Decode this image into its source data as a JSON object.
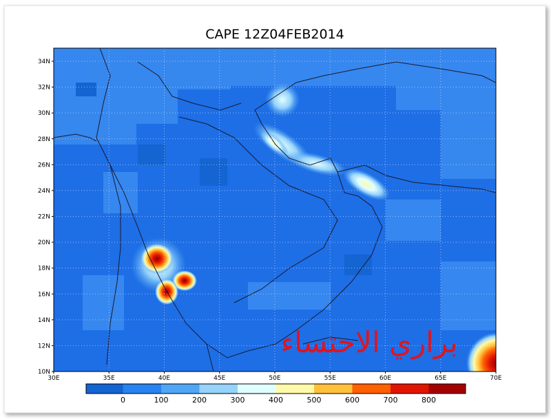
{
  "title": "CAPE 12Z04FEB2014",
  "watermark": "براري الاحتساء",
  "lat_ticks": [
    "10N",
    "12N",
    "14N",
    "16N",
    "18N",
    "20N",
    "22N",
    "24N",
    "26N",
    "28N",
    "30N",
    "32N",
    "34N"
  ],
  "lon_ticks": [
    "30E",
    "35E",
    "40E",
    "45E",
    "50E",
    "55E",
    "60E",
    "65E",
    "70E"
  ],
  "colorbar_labels": [
    "0",
    "100",
    "200",
    "300",
    "400",
    "500",
    "600",
    "700",
    "800"
  ]
}
